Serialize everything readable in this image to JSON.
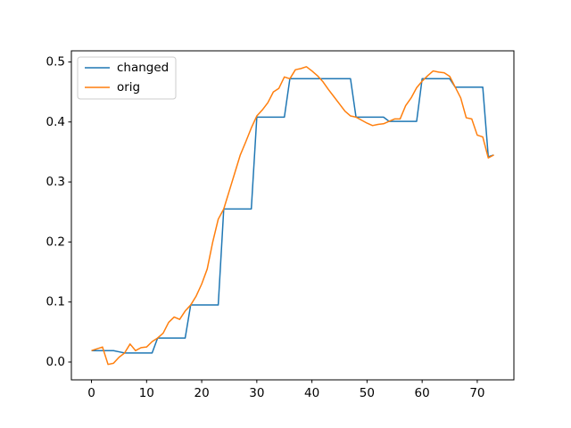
{
  "chart_data": {
    "type": "line",
    "x": [
      0,
      1,
      2,
      3,
      4,
      5,
      6,
      7,
      8,
      9,
      10,
      11,
      12,
      13,
      14,
      15,
      16,
      17,
      18,
      19,
      20,
      21,
      22,
      23,
      24,
      25,
      26,
      27,
      28,
      29,
      30,
      31,
      32,
      33,
      34,
      35,
      36,
      37,
      38,
      39,
      40,
      41,
      42,
      43,
      44,
      45,
      46,
      47,
      48,
      49,
      50,
      51,
      52,
      53,
      54,
      55,
      56,
      57,
      58,
      59,
      60,
      61,
      62,
      63,
      64,
      65,
      66,
      67,
      68,
      69,
      70,
      71,
      72,
      73
    ],
    "series": [
      {
        "name": "changed",
        "color": "#1f77b4",
        "values": [
          0.019,
          0.019,
          0.019,
          0.019,
          0.019,
          0.017,
          0.015,
          0.015,
          0.015,
          0.015,
          0.015,
          0.015,
          0.04,
          0.04,
          0.04,
          0.04,
          0.04,
          0.04,
          0.095,
          0.095,
          0.095,
          0.095,
          0.095,
          0.095,
          0.255,
          0.255,
          0.255,
          0.255,
          0.255,
          0.255,
          0.408,
          0.408,
          0.408,
          0.408,
          0.408,
          0.408,
          0.472,
          0.472,
          0.472,
          0.472,
          0.472,
          0.472,
          0.472,
          0.472,
          0.472,
          0.472,
          0.472,
          0.472,
          0.408,
          0.408,
          0.408,
          0.408,
          0.408,
          0.408,
          0.401,
          0.401,
          0.401,
          0.401,
          0.401,
          0.401,
          0.472,
          0.472,
          0.472,
          0.472,
          0.472,
          0.472,
          0.458,
          0.458,
          0.458,
          0.458,
          0.458,
          0.458,
          0.342,
          0.345
        ]
      },
      {
        "name": "orig",
        "color": "#ff7f0e",
        "values": [
          0.019,
          0.022,
          0.025,
          -0.004,
          -0.002,
          0.008,
          0.015,
          0.03,
          0.019,
          0.024,
          0.025,
          0.034,
          0.04,
          0.048,
          0.066,
          0.075,
          0.071,
          0.085,
          0.095,
          0.11,
          0.13,
          0.155,
          0.2,
          0.238,
          0.255,
          0.285,
          0.315,
          0.345,
          0.367,
          0.39,
          0.41,
          0.42,
          0.432,
          0.45,
          0.456,
          0.475,
          0.472,
          0.487,
          0.489,
          0.492,
          0.485,
          0.477,
          0.467,
          0.454,
          0.442,
          0.43,
          0.418,
          0.41,
          0.408,
          0.403,
          0.398,
          0.394,
          0.396,
          0.397,
          0.401,
          0.405,
          0.405,
          0.427,
          0.44,
          0.457,
          0.468,
          0.477,
          0.485,
          0.483,
          0.482,
          0.476,
          0.458,
          0.44,
          0.407,
          0.405,
          0.378,
          0.375,
          0.34,
          0.345
        ]
      }
    ],
    "xlim": [
      -3.65,
      76.65
    ],
    "xticks": [
      0,
      10,
      20,
      30,
      40,
      50,
      60,
      70
    ],
    "ylim": [
      -0.0297,
      0.5185
    ],
    "yticks": [
      {
        "value": 0,
        "label": "0.0"
      },
      0.1,
      0.2,
      0.3,
      0.4,
      0.5
    ],
    "legend": "upper left"
  }
}
